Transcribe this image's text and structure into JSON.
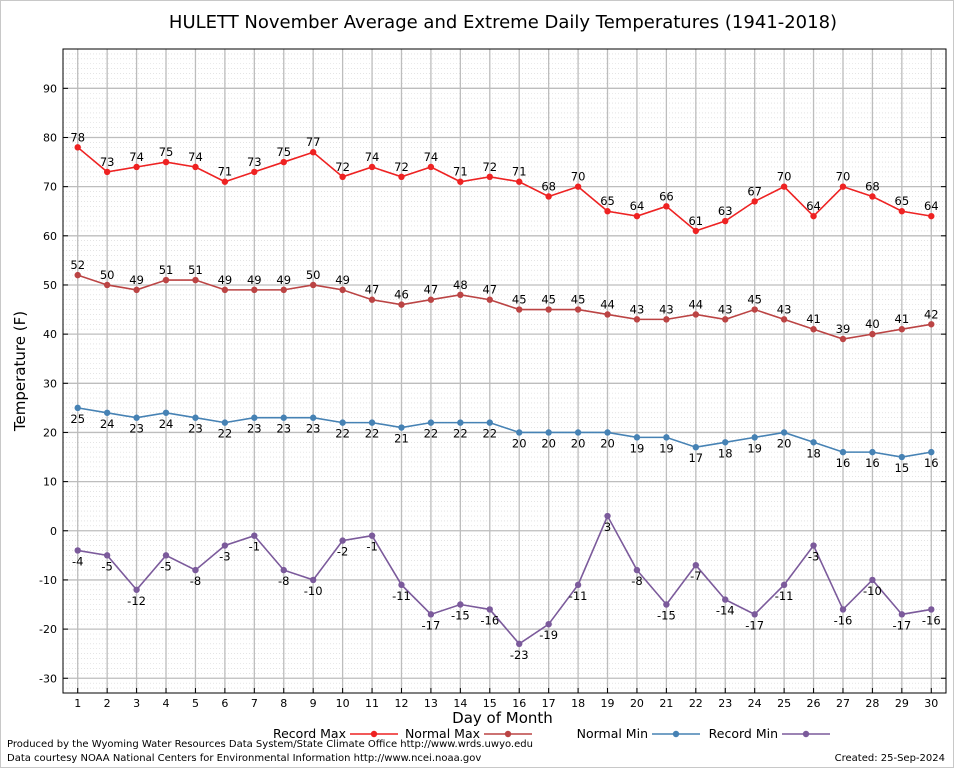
{
  "chart_data": {
    "type": "line",
    "title": "HULETT November Average and Extreme Daily Temperatures (1941-2018)",
    "xlabel": "Day of Month",
    "ylabel": "Temperature (F)",
    "ylim": [
      -33,
      98
    ],
    "yticks": [
      -30,
      -20,
      -10,
      0,
      10,
      20,
      30,
      40,
      50,
      60,
      70,
      80,
      90
    ],
    "grid": true,
    "legend_placement": "bottom",
    "x": [
      1,
      2,
      3,
      4,
      5,
      6,
      7,
      8,
      9,
      10,
      11,
      12,
      13,
      14,
      15,
      16,
      17,
      18,
      19,
      20,
      21,
      22,
      23,
      24,
      25,
      26,
      27,
      28,
      29,
      30
    ],
    "series": [
      {
        "name": "Record Max",
        "color": "#ee2222",
        "label_pos": "above",
        "values": [
          78,
          73,
          74,
          75,
          74,
          71,
          73,
          75,
          77,
          72,
          74,
          72,
          74,
          71,
          72,
          71,
          68,
          70,
          65,
          64,
          66,
          61,
          63,
          67,
          70,
          64,
          70,
          68,
          65,
          64
        ]
      },
      {
        "name": "Normal Max",
        "color": "#bb4444",
        "label_pos": "above",
        "values": [
          52,
          50,
          49,
          51,
          51,
          49,
          49,
          49,
          50,
          49,
          47,
          46,
          47,
          48,
          47,
          45,
          45,
          45,
          44,
          43,
          43,
          44,
          43,
          45,
          43,
          41,
          39,
          40,
          41,
          42
        ]
      },
      {
        "name": "Normal Min",
        "color": "#4682b4",
        "label_pos": "below",
        "values": [
          25,
          24,
          23,
          24,
          23,
          22,
          23,
          23,
          23,
          22,
          22,
          21,
          22,
          22,
          22,
          20,
          20,
          20,
          20,
          19,
          19,
          17,
          18,
          19,
          20,
          18,
          16,
          16,
          15,
          16
        ]
      },
      {
        "name": "Record Min",
        "color": "#7b5a9b",
        "label_pos": "below",
        "values": [
          -4,
          -5,
          -12,
          -5,
          -8,
          -3,
          -1,
          -8,
          -10,
          -2,
          -1,
          -11,
          -17,
          -15,
          -16,
          -23,
          -19,
          -11,
          3,
          -8,
          -15,
          -7,
          -14,
          -17,
          -11,
          -3,
          -16,
          -10,
          -17,
          -16
        ]
      }
    ]
  },
  "footer": {
    "credit_line1": "Produced by the Wyoming Water Resources Data System/State Climate Office http://www.wrds.uwyo.edu",
    "credit_line2": "Data courtesy NOAA National Centers for Environmental Information http://www.ncei.noaa.gov",
    "created": "Created: 25-Sep-2024"
  }
}
